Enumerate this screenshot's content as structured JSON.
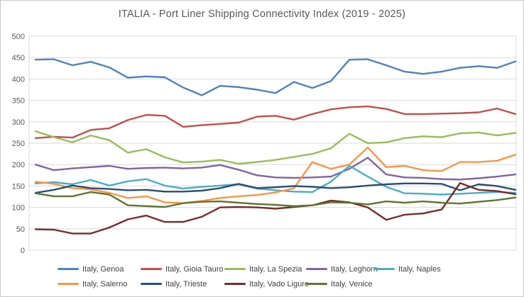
{
  "title": "ITALIA - Port Liner Shipping Connectivity Index (2019 - 2025)",
  "palette": {
    "title_text": "#585858",
    "axis_label_text": "#595959",
    "legend_text": "#3f3f3f",
    "gridline": "#d9d9d9",
    "frame_border": "#c9c9c9",
    "background": "#ffffff"
  },
  "chart_data": {
    "type": "line",
    "title": "ITALIA - Port Liner Shipping Connectivity Index (2019 - 2025)",
    "xlabel": "",
    "ylabel": "",
    "x_axis": {
      "tick_labels_shown": false,
      "implied_period": "2019 - 2025",
      "n_points": 27
    },
    "y_axis": {
      "min": 0,
      "max": 500,
      "tick_step": 50,
      "ticks": [
        0,
        50,
        100,
        150,
        200,
        250,
        300,
        350,
        400,
        450,
        500
      ]
    },
    "grid": true,
    "legend_position": "bottom",
    "series": [
      {
        "name": "Italy, Genoa",
        "color": "#4F81BD",
        "values": [
          445,
          446,
          432,
          440,
          427,
          403,
          406,
          404,
          380,
          362,
          384,
          381,
          375,
          367,
          393,
          379,
          395,
          445,
          446,
          432,
          417,
          412,
          417,
          426,
          430,
          426,
          441
        ]
      },
      {
        "name": "Italy, Gioia Tauro",
        "color": "#C0504D",
        "values": [
          262,
          265,
          263,
          281,
          285,
          304,
          316,
          314,
          288,
          292,
          295,
          298,
          312,
          314,
          305,
          318,
          329,
          334,
          336,
          330,
          318,
          318,
          319,
          320,
          322,
          331,
          318
        ]
      },
      {
        "name": "Italy, La Spezia",
        "color": "#9BBB59",
        "values": [
          278,
          264,
          252,
          268,
          257,
          228,
          236,
          217,
          205,
          207,
          211,
          202,
          206,
          211,
          218,
          225,
          238,
          272,
          250,
          252,
          262,
          266,
          264,
          273,
          275,
          268,
          274
        ]
      },
      {
        "name": "Italy, Leghorn",
        "color": "#8064A2",
        "values": [
          200,
          187,
          191,
          194,
          197,
          190,
          192,
          193,
          191,
          193,
          199,
          188,
          175,
          170,
          169,
          170,
          172,
          190,
          216,
          177,
          170,
          169,
          166,
          165,
          168,
          172,
          177
        ]
      },
      {
        "name": "Italy, Naples",
        "color": "#4BACC6",
        "values": [
          156,
          159,
          154,
          164,
          151,
          161,
          166,
          151,
          144,
          148,
          151,
          154,
          144,
          140,
          137,
          136,
          160,
          197,
          172,
          148,
          133,
          132,
          130,
          132,
          134,
          136,
          134
        ]
      },
      {
        "name": "Italy, Salerno",
        "color": "#F79646",
        "values": [
          160,
          155,
          145,
          142,
          134,
          122,
          126,
          112,
          110,
          115,
          122,
          126,
          129,
          135,
          145,
          206,
          190,
          200,
          240,
          194,
          197,
          187,
          185,
          206,
          206,
          209,
          223
        ]
      },
      {
        "name": "Italy, Trieste",
        "color": "#2C4D75",
        "values": [
          134,
          141,
          151,
          145,
          143,
          140,
          141,
          137,
          137,
          139,
          145,
          155,
          145,
          147,
          150,
          148,
          145,
          147,
          151,
          154,
          156,
          156,
          155,
          140,
          154,
          150,
          141
        ]
      },
      {
        "name": "Italy, Vado Ligure",
        "color": "#772C2A",
        "values": [
          49,
          48,
          39,
          39,
          53,
          72,
          81,
          66,
          66,
          78,
          100,
          101,
          100,
          97,
          101,
          105,
          116,
          112,
          100,
          71,
          83,
          86,
          95,
          157,
          141,
          138,
          131
        ]
      },
      {
        "name": "Italy, Venice",
        "color": "#5F7530",
        "values": [
          133,
          126,
          126,
          136,
          130,
          105,
          103,
          101,
          110,
          113,
          114,
          111,
          108,
          106,
          103,
          105,
          112,
          111,
          107,
          114,
          111,
          114,
          111,
          109,
          113,
          117,
          123
        ]
      }
    ]
  }
}
